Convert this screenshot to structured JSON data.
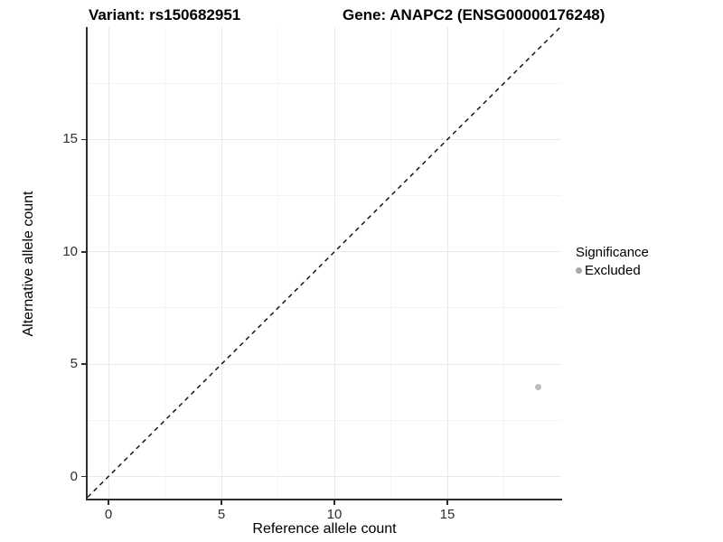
{
  "title": {
    "variant": "Variant: rs150682951",
    "gene": "Gene: ANAPC2 (ENSG00000176248)"
  },
  "axes": {
    "x_label": "Reference allele count",
    "y_label": "Alternative allele count"
  },
  "legend": {
    "title": "Significance",
    "items": [
      {
        "label": "Excluded",
        "color": "#a8a8a8"
      }
    ]
  },
  "colors": {
    "axis_line": "#2d2d2d",
    "grid_major": "#e9e9e9",
    "grid_minor": "#f4f4f4",
    "point": "#bdbdbd",
    "reference_line": "#141414",
    "background": "#ffffff"
  },
  "chart_data": {
    "type": "scatter",
    "title": "Variant: rs150682951 | Gene: ANAPC2 (ENSG00000176248)",
    "xlabel": "Reference allele count",
    "ylabel": "Alternative allele count",
    "xlim": [
      -0.92,
      20.04
    ],
    "ylim": [
      -0.98,
      20.02
    ],
    "x_ticks": [
      0,
      5,
      10,
      15
    ],
    "y_ticks": [
      0,
      5,
      10,
      15
    ],
    "minor_tick_offset": 2.5,
    "grid": "major+minor on white, no panel border, left/bottom axis lines",
    "reference_line": {
      "type": "identity y=x",
      "style": "dashed",
      "color": "#141414"
    },
    "series": [
      {
        "name": "Excluded",
        "color": "#bdbdbd",
        "marker": "circle",
        "points": [
          {
            "x": 19,
            "y": 4
          }
        ]
      }
    ],
    "legend": {
      "title": "Significance",
      "position": "right",
      "entries": [
        "Excluded"
      ]
    }
  }
}
